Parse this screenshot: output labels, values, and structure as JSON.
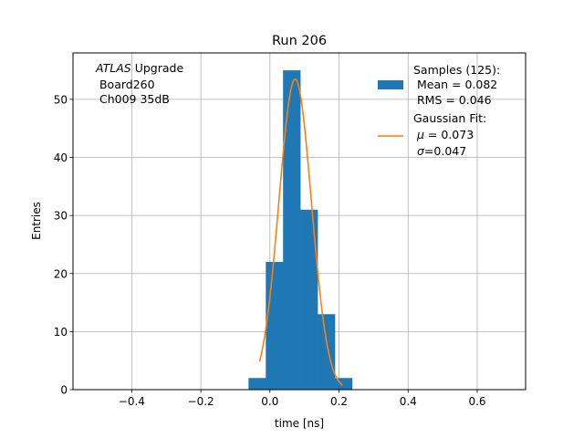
{
  "chart_data": {
    "type": "bar",
    "title": "Run 206",
    "xlabel": "time [ns]",
    "ylabel": "Entries",
    "xlim": [
      -0.57,
      0.74
    ],
    "ylim": [
      0,
      58
    ],
    "grid": true,
    "xticks": [
      -0.4,
      -0.2,
      0.0,
      0.2,
      0.4,
      0.6
    ],
    "xtick_labels": [
      "−0.4",
      "−0.2",
      "0.0",
      "0.2",
      "0.4",
      "0.6"
    ],
    "yticks": [
      0,
      10,
      20,
      30,
      40,
      50
    ],
    "annotation": {
      "atlas": "ATLAS",
      "line1_rest": " Upgrade",
      "line2": " Board260",
      "line3": " Ch009 35dB"
    },
    "histogram": {
      "bin_edges": [
        -0.062,
        -0.012,
        0.038,
        0.088,
        0.138,
        0.188,
        0.238
      ],
      "counts": [
        2,
        22,
        55,
        31,
        13,
        2
      ],
      "color": "#1f77b4"
    },
    "fit": {
      "mu": 0.073,
      "sigma": 0.047,
      "amplitude": 53.5,
      "x_range": [
        -0.03,
        0.21
      ],
      "color": "#ff7f0e"
    },
    "legend": {
      "position": "top-right",
      "hist_lines": [
        "Samples (125):",
        " Mean = 0.082",
        " RMS = 0.046"
      ],
      "fit_line1": "Gaussian Fit:",
      "fit_mu_symbol": "μ",
      "fit_mu_rest": " = 0.073",
      "fit_sigma_symbol": "σ",
      "fit_sigma_rest": "=0.047"
    }
  }
}
